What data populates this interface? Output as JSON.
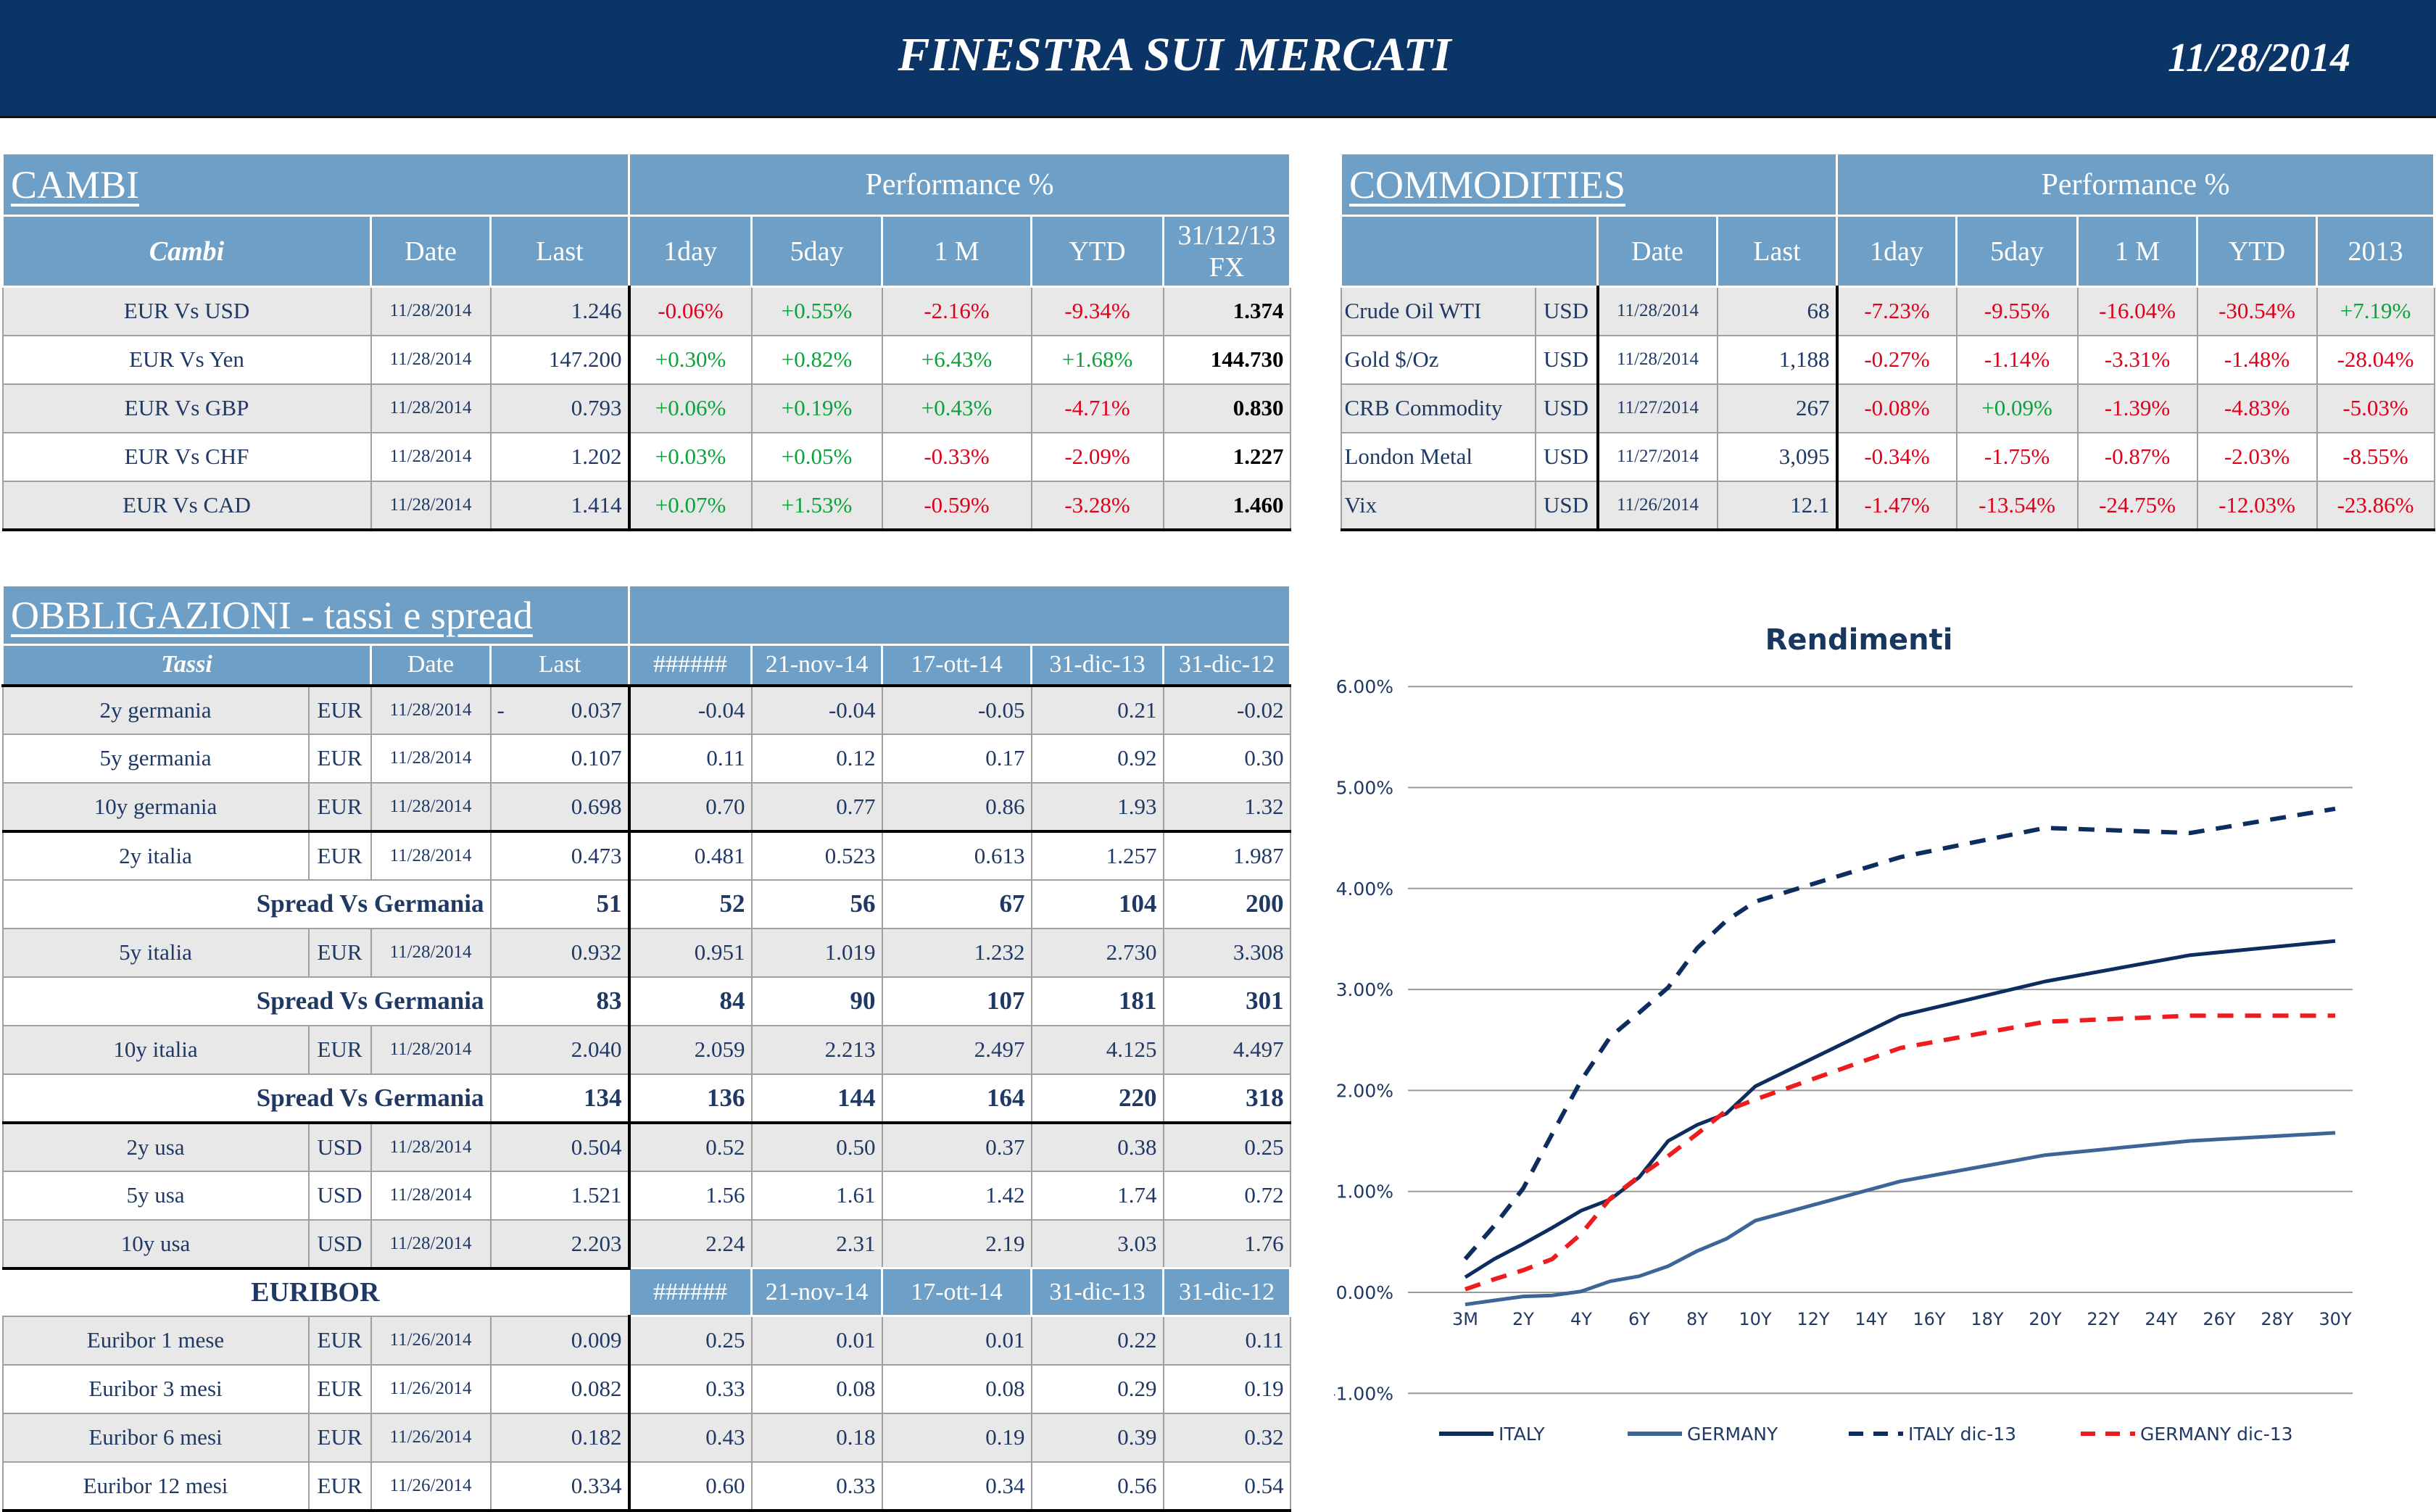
{
  "header": {
    "title": "FINESTRA SUI MERCATI",
    "date": "11/28/2014"
  },
  "colors": {
    "header_bg": "#0c3567",
    "table_header": "#6e9fc6",
    "positive": "#0aa33b",
    "negative": "#e0001b",
    "navy": "#1f3864"
  },
  "cambi": {
    "title": "CAMBI",
    "perf_label": "Performance  %",
    "columns": [
      "Cambi",
      "Date",
      "Last",
      "1day",
      "5day",
      "1 M",
      "YTD",
      "31/12/13 FX"
    ],
    "rows": [
      [
        "EUR Vs USD",
        "11/28/2014",
        "1.246",
        "-0.06%",
        "+0.55%",
        "-2.16%",
        "-9.34%",
        "1.374"
      ],
      [
        "EUR Vs Yen",
        "11/28/2014",
        "147.200",
        "+0.30%",
        "+0.82%",
        "+6.43%",
        "+1.68%",
        "144.730"
      ],
      [
        "EUR Vs GBP",
        "11/28/2014",
        "0.793",
        "+0.06%",
        "+0.19%",
        "+0.43%",
        "-4.71%",
        "0.830"
      ],
      [
        "EUR Vs CHF",
        "11/28/2014",
        "1.202",
        "+0.03%",
        "+0.05%",
        "-0.33%",
        "-2.09%",
        "1.227"
      ],
      [
        "EUR Vs CAD",
        "11/28/2014",
        "1.414",
        "+0.07%",
        "+1.53%",
        "-0.59%",
        "-3.28%",
        "1.460"
      ]
    ]
  },
  "commodities": {
    "title": "COMMODITIES",
    "perf_label": "Performance  %",
    "columns": [
      "",
      "Date",
      "Last",
      "1day",
      "5day",
      "1 M",
      "YTD",
      "2013"
    ],
    "rows": [
      [
        "Crude Oil WTI",
        "USD",
        "11/28/2014",
        "68",
        "-7.23%",
        "-9.55%",
        "-16.04%",
        "-30.54%",
        "+7.19%"
      ],
      [
        "Gold $/Oz",
        "USD",
        "11/28/2014",
        "1,188",
        "-0.27%",
        "-1.14%",
        "-3.31%",
        "-1.48%",
        "-28.04%"
      ],
      [
        "CRB Commodity",
        "USD",
        "11/27/2014",
        "267",
        "-0.08%",
        "+0.09%",
        "-1.39%",
        "-4.83%",
        "-5.03%"
      ],
      [
        "London Metal",
        "USD",
        "11/27/2014",
        "3,095",
        "-0.34%",
        "-1.75%",
        "-0.87%",
        "-2.03%",
        "-8.55%"
      ],
      [
        "Vix",
        "USD",
        "11/26/2014",
        "12.1",
        "-1.47%",
        "-13.54%",
        "-24.75%",
        "-12.03%",
        "-23.86%"
      ]
    ]
  },
  "bonds": {
    "title": "OBBLIGAZIONI - tassi e spread",
    "columns": [
      "Tassi",
      "Date",
      "Last",
      "######",
      "21-nov-14",
      "17-ott-14",
      "31-dic-13",
      "31-dic-12"
    ],
    "rows": [
      {
        "type": "rate",
        "cells": [
          "2y germania",
          "EUR",
          "11/28/2014",
          "0.037",
          "-0.04",
          "-0.04",
          "-0.05",
          "0.21",
          "-0.02"
        ],
        "sign": "-"
      },
      {
        "type": "rate",
        "cells": [
          "5y germania",
          "EUR",
          "11/28/2014",
          "0.107",
          "0.11",
          "0.12",
          "0.17",
          "0.92",
          "0.30"
        ]
      },
      {
        "type": "rate",
        "cells": [
          "10y germania",
          "EUR",
          "11/28/2014",
          "0.698",
          "0.70",
          "0.77",
          "0.86",
          "1.93",
          "1.32"
        ]
      },
      {
        "type": "rate",
        "cells": [
          "2y italia",
          "EUR",
          "11/28/2014",
          "0.473",
          "0.481",
          "0.523",
          "0.613",
          "1.257",
          "1.987"
        ]
      },
      {
        "type": "spread",
        "cells": [
          "Spread Vs Germania",
          "51",
          "52",
          "56",
          "67",
          "104",
          "200"
        ]
      },
      {
        "type": "rate",
        "cells": [
          "5y italia",
          "EUR",
          "11/28/2014",
          "0.932",
          "0.951",
          "1.019",
          "1.232",
          "2.730",
          "3.308"
        ]
      },
      {
        "type": "spread",
        "cells": [
          "Spread Vs Germania",
          "83",
          "84",
          "90",
          "107",
          "181",
          "301"
        ]
      },
      {
        "type": "rate",
        "cells": [
          "10y italia",
          "EUR",
          "11/28/2014",
          "2.040",
          "2.059",
          "2.213",
          "2.497",
          "4.125",
          "4.497"
        ]
      },
      {
        "type": "spread",
        "cells": [
          "Spread Vs Germania",
          "134",
          "136",
          "144",
          "164",
          "220",
          "318"
        ]
      },
      {
        "type": "rate",
        "cells": [
          "2y usa",
          "USD",
          "11/28/2014",
          "0.504",
          "0.52",
          "0.50",
          "0.37",
          "0.38",
          "0.25"
        ]
      },
      {
        "type": "rate",
        "cells": [
          "5y usa",
          "USD",
          "11/28/2014",
          "1.521",
          "1.56",
          "1.61",
          "1.42",
          "1.74",
          "0.72"
        ]
      },
      {
        "type": "rate",
        "cells": [
          "10y usa",
          "USD",
          "11/28/2014",
          "2.203",
          "2.24",
          "2.31",
          "2.19",
          "3.03",
          "1.76"
        ]
      }
    ]
  },
  "euribor": {
    "title": "EURIBOR",
    "columns": [
      "######",
      "21-nov-14",
      "17-ott-14",
      "31-dic-13",
      "31-dic-12"
    ],
    "rows": [
      [
        "Euribor 1 mese",
        "EUR",
        "11/26/2014",
        "0.009",
        "0.25",
        "0.01",
        "0.01",
        "0.22",
        "0.11"
      ],
      [
        "Euribor 3 mesi",
        "EUR",
        "11/26/2014",
        "0.082",
        "0.33",
        "0.08",
        "0.08",
        "0.29",
        "0.19"
      ],
      [
        "Euribor 6 mesi",
        "EUR",
        "11/26/2014",
        "0.182",
        "0.43",
        "0.18",
        "0.19",
        "0.39",
        "0.32"
      ],
      [
        "Euribor 12 mesi",
        "EUR",
        "11/26/2014",
        "0.334",
        "0.60",
        "0.33",
        "0.34",
        "0.56",
        "0.54"
      ]
    ]
  },
  "chart_data": {
    "type": "line",
    "title": "Rendimenti",
    "categories": [
      "3M",
      "1Y",
      "2Y",
      "3Y",
      "4Y",
      "5Y",
      "6Y",
      "7Y",
      "8Y",
      "9Y",
      "10Y",
      "11Y",
      "12Y",
      "13Y",
      "14Y",
      "15Y",
      "16Y",
      "17Y",
      "18Y",
      "19Y",
      "20Y",
      "21Y",
      "22Y",
      "23Y",
      "24Y",
      "25Y",
      "26Y",
      "27Y",
      "28Y",
      "29Y",
      "30Y"
    ],
    "tick_labels": [
      "3M",
      "2Y",
      "4Y",
      "6Y",
      "8Y",
      "10Y",
      "12Y",
      "14Y",
      "16Y",
      "18Y",
      "20Y",
      "22Y",
      "24Y",
      "26Y",
      "28Y",
      "30Y"
    ],
    "y_ticks": [
      "6.00%",
      "5.00%",
      "4.00%",
      "3.00%",
      "2.00%",
      "1.00%",
      "0.00%",
      "-1.00%"
    ],
    "ylim": [
      -1,
      6
    ],
    "grid": true,
    "legend": "bottom",
    "series": [
      {
        "name": "ITALY",
        "color": "#0c2d5e",
        "dash": false,
        "values": [
          0.15,
          0.33,
          0.48,
          0.64,
          0.81,
          0.92,
          1.14,
          1.5,
          1.66,
          1.77,
          2.04,
          null,
          null,
          null,
          null,
          2.74,
          null,
          null,
          null,
          null,
          3.08,
          null,
          null,
          null,
          null,
          3.34,
          null,
          null,
          null,
          null,
          3.48
        ]
      },
      {
        "name": "GERMANY",
        "color": "#3d6597",
        "dash": false,
        "values": [
          -0.12,
          -0.08,
          -0.04,
          -0.03,
          0.01,
          0.11,
          0.16,
          0.26,
          0.41,
          0.53,
          0.71,
          null,
          null,
          null,
          null,
          1.1,
          null,
          null,
          null,
          null,
          1.36,
          null,
          null,
          null,
          null,
          1.5,
          null,
          null,
          null,
          null,
          1.58
        ]
      },
      {
        "name": "ITALY dic-13",
        "color": "#0c2d5e",
        "dash": true,
        "values": [
          0.33,
          0.66,
          1.03,
          1.57,
          2.1,
          2.53,
          2.77,
          3.02,
          3.41,
          3.68,
          3.87,
          null,
          null,
          null,
          null,
          4.31,
          null,
          null,
          null,
          null,
          4.6,
          null,
          null,
          null,
          null,
          4.55,
          null,
          null,
          null,
          null,
          4.79
        ]
      },
      {
        "name": "GERMANY dic-13",
        "color": "#ee1c1c",
        "dash": true,
        "values": [
          0.03,
          0.13,
          0.22,
          0.33,
          0.58,
          0.93,
          1.15,
          1.35,
          1.57,
          1.8,
          1.91,
          null,
          null,
          null,
          null,
          2.42,
          null,
          null,
          null,
          null,
          2.68,
          null,
          null,
          null,
          null,
          2.74,
          null,
          null,
          null,
          null,
          2.74
        ]
      }
    ]
  }
}
